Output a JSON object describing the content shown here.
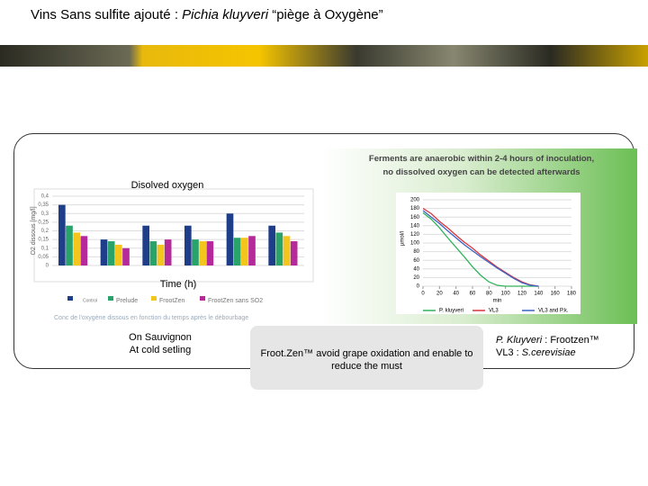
{
  "title": {
    "lead": "Vins Sans sulfite ajouté : ",
    "species": "Pichia kluyveri",
    "tail": " “piège à Oxygène”"
  },
  "chart_data": [
    {
      "type": "bar",
      "title": "Disolved oxygen",
      "x_label": "Time (h)",
      "y_label": "O2 dissous [mg/l]",
      "caption": "Conc de l'oxygène dissous en fonction du temps après le débourbage",
      "categories": [
        null,
        null,
        null,
        null,
        null,
        null
      ],
      "series": [
        {
          "name": "Control",
          "color": "#1f3e8a",
          "values": [
            0.35,
            0.15,
            0.23,
            0.23,
            0.3,
            0.23
          ]
        },
        {
          "name": "Prelude",
          "color": "#2aa36b",
          "values": [
            0.23,
            0.14,
            0.14,
            0.15,
            0.16,
            0.19
          ]
        },
        {
          "name": "FrootZen",
          "color": "#f4c51c",
          "values": [
            0.19,
            0.12,
            0.12,
            0.14,
            0.16,
            0.17
          ]
        },
        {
          "name": "FrootZen sans SO2",
          "color": "#b5299a",
          "values": [
            0.17,
            0.1,
            0.15,
            0.14,
            0.17,
            0.14
          ]
        }
      ],
      "ylim": [
        0,
        0.4
      ],
      "yticks": [
        0,
        {
          "value": 0.05,
          "label": "0,05"
        },
        {
          "value": 0.1,
          "label": "0,1"
        },
        {
          "value": 0.15,
          "label": "0,15"
        },
        {
          "value": 0.2,
          "label": "0,2"
        },
        {
          "value": 0.25,
          "label": "0,25"
        },
        {
          "value": 0.3,
          "label": "0,3"
        },
        {
          "value": 0.35,
          "label": "0,35"
        },
        {
          "value": 0.4,
          "label": "0,4"
        }
      ],
      "grid": true
    },
    {
      "type": "line",
      "title": "Ferments are anaerobic within 2-4 hours of inoculation, no dissolved oxygen can be detected afterwards",
      "x_label": "min",
      "y_label": "µmol/l",
      "x": [
        0,
        10,
        20,
        30,
        40,
        50,
        60,
        70,
        80,
        90,
        100,
        110,
        120,
        130,
        140
      ],
      "series": [
        {
          "name": "P. kluyveri",
          "color": "#2fb35a",
          "values": [
            170,
            155,
            135,
            112,
            90,
            68,
            45,
            25,
            10,
            2,
            0,
            0,
            0,
            0,
            0
          ]
        },
        {
          "name": "VL3",
          "color": "#d9363e",
          "values": [
            180,
            168,
            150,
            135,
            118,
            102,
            88,
            72,
            58,
            44,
            32,
            20,
            10,
            3,
            0
          ]
        },
        {
          "name": "VL3 and P.k.",
          "color": "#3b62c4",
          "values": [
            175,
            160,
            145,
            128,
            112,
            96,
            82,
            68,
            55,
            42,
            30,
            18,
            8,
            2,
            0
          ]
        }
      ],
      "xlim": [
        0,
        180
      ],
      "xticks": [
        0,
        20,
        40,
        60,
        80,
        100,
        120,
        140,
        160,
        180
      ],
      "ylim": [
        0,
        200
      ],
      "yticks": [
        0,
        20,
        40,
        60,
        80,
        100,
        120,
        140,
        160,
        180,
        200
      ],
      "grid": true
    }
  ],
  "notes": {
    "grape": [
      "On Sauvignon",
      "At cold setling"
    ],
    "box": "Froot.Zen™ avoid grape oxidation and enable to reduce the must",
    "strains": {
      "pk_name": "P. Kluyveri",
      "pk_product": " : Frootzen™",
      "vl3_name": "VL3 : ",
      "vl3_species": "S.cerevisiae"
    }
  }
}
